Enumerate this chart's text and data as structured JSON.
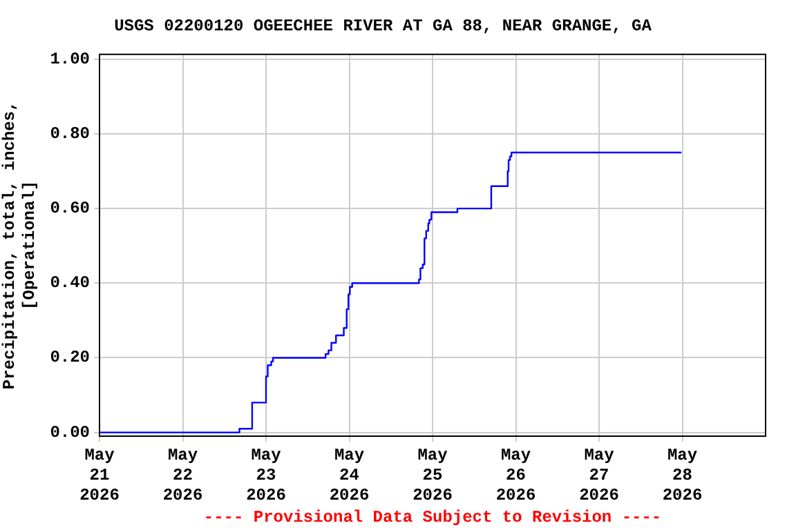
{
  "chart_data": {
    "type": "step",
    "title": "USGS 02200120 OGEECHEE RIVER AT GA 88, NEAR GRANGE, GA",
    "ylabel": "Precipitation, total, inches,\n[Operational]",
    "annotations": [
      "---- Provisional Data Subject to Revision ----"
    ],
    "x": [
      "2026-05-21T00:00",
      "2026-05-22T16:20",
      "2026-05-22T20:00",
      "2026-05-23T00:00",
      "2026-05-23T00:30",
      "2026-05-23T01:30",
      "2026-05-23T02:00",
      "2026-05-23T17:10",
      "2026-05-23T18:00",
      "2026-05-23T18:50",
      "2026-05-23T20:10",
      "2026-05-23T22:25",
      "2026-05-23T23:15",
      "2026-05-23T23:45",
      "2026-05-24T00:10",
      "2026-05-24T00:50",
      "2026-05-24T20:05",
      "2026-05-24T20:30",
      "2026-05-24T21:10",
      "2026-05-24T21:40",
      "2026-05-24T22:10",
      "2026-05-24T22:45",
      "2026-05-24T23:05",
      "2026-05-24T23:40",
      "2026-05-25T07:10",
      "2026-05-25T16:55",
      "2026-05-25T21:40",
      "2026-05-25T21:55",
      "2026-05-25T22:20",
      "2026-05-25T22:45",
      "2026-05-27T23:45"
    ],
    "series": [
      {
        "color": "#0000ff",
        "values": [
          0,
          0.01,
          0.08,
          0.15,
          0.18,
          0.19,
          0.2,
          0.21,
          0.22,
          0.24,
          0.26,
          0.28,
          0.33,
          0.37,
          0.39,
          0.4,
          0.41,
          0.44,
          0.45,
          0.52,
          0.54,
          0.56,
          0.57,
          0.59,
          0.6,
          0.66,
          0.7,
          0.73,
          0.74,
          0.75,
          0.75
        ]
      }
    ],
    "xlim": [
      "2026-05-21",
      "2026-05-29"
    ],
    "xticks": [
      {
        "value": "2026-05-21",
        "label": "May 21 2026"
      },
      {
        "value": "2026-05-22",
        "label": "May 22 2026"
      },
      {
        "value": "2026-05-23",
        "label": "May 23 2026"
      },
      {
        "value": "2026-05-24",
        "label": "May 24 2026"
      },
      {
        "value": "2026-05-25",
        "label": "May 25 2026"
      },
      {
        "value": "2026-05-26",
        "label": "May 26 2026"
      },
      {
        "value": "2026-05-27",
        "label": "May 27 2026"
      },
      {
        "value": "2026-05-28",
        "label": "May 28 2026"
      }
    ],
    "ylim": [
      -0.01,
      1.013
    ],
    "yticks": [
      {
        "value": 0,
        "label": "0.00"
      },
      {
        "value": 0.2,
        "label": "0.20"
      },
      {
        "value": 0.4,
        "label": "0.40"
      },
      {
        "value": 0.6,
        "label": "0.60"
      },
      {
        "value": 0.8,
        "label": "0.80"
      },
      {
        "value": 1,
        "label": "1.00"
      }
    ],
    "grid": true,
    "legend": false,
    "marker": "none",
    "line_style": "solid"
  }
}
